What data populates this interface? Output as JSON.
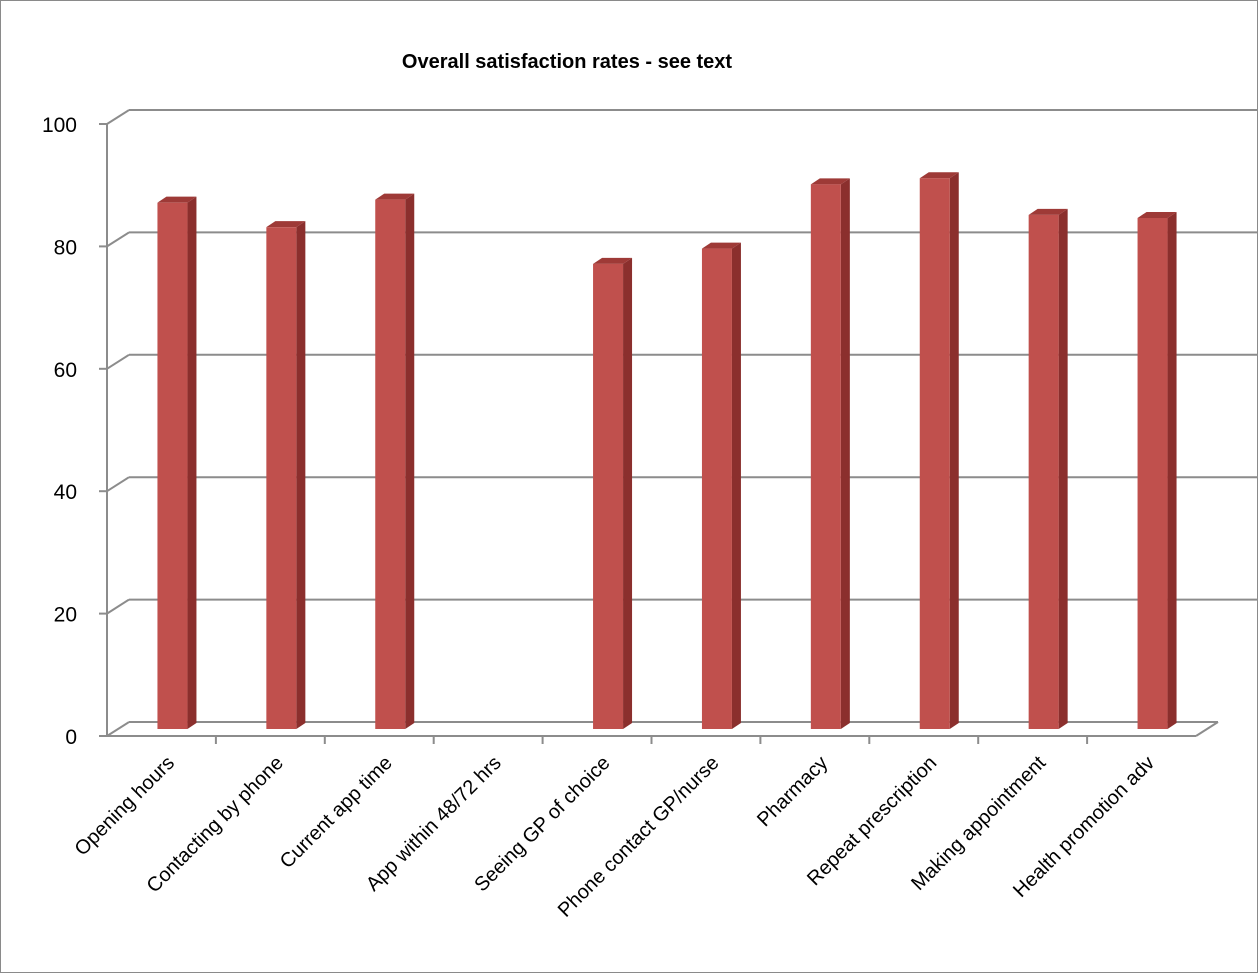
{
  "chart_data": {
    "type": "bar",
    "title": "Overall satisfaction rates - see text",
    "xlabel": "",
    "ylabel": "",
    "categories": [
      "Opening hours",
      "Contacting by phone",
      "Current app time",
      "App within 48/72 hrs",
      "Seeing GP of choice",
      "Phone contact GP/nurse",
      "Pharmacy",
      "Repeat prescription",
      "Making appointment",
      "Health promotion adv"
    ],
    "values": [
      86,
      82,
      86.5,
      null,
      76,
      78.5,
      89,
      90,
      84,
      83.5
    ],
    "ylim": [
      0,
      100
    ],
    "yticks": [
      "0",
      "20",
      "40",
      "60",
      "80",
      "100"
    ],
    "grid": true,
    "legend": "none",
    "three_d": true
  },
  "colors": {
    "bar_front": "#c0504d",
    "bar_side": "#8b2f2d",
    "bar_top": "#9e3a37",
    "gridline": "#8c8c8c",
    "axis": "#8c8c8c"
  }
}
